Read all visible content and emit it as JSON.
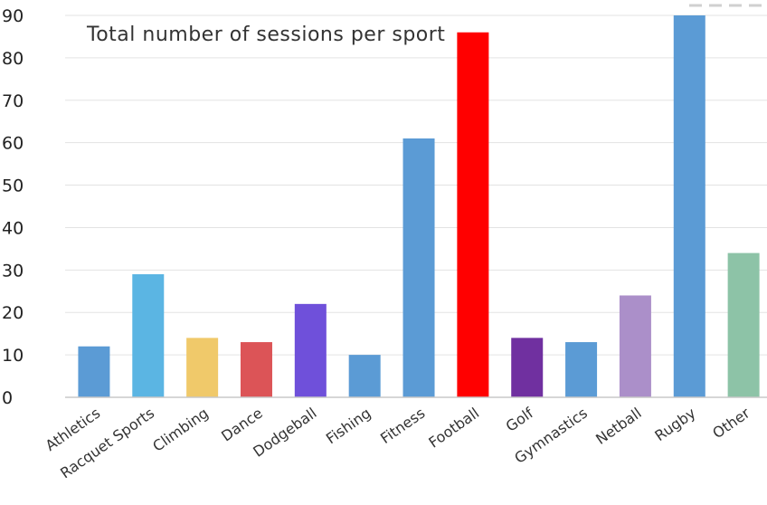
{
  "chart_data": {
    "type": "bar",
    "title": "Total number of sessions per sport",
    "xlabel": "",
    "ylabel": "",
    "ylim": [
      0,
      90
    ],
    "yticks": [
      "0",
      "10",
      "20",
      "30",
      "40",
      "50",
      "60",
      "70",
      "80",
      "90"
    ],
    "grid": true,
    "categories": [
      "Athletics",
      "Racquet Sports",
      "Climbing",
      "Dance",
      "Dodgeball",
      "Fishing",
      "Fitness",
      "Football",
      "Golf",
      "Gymnastics",
      "Netball",
      "Rugby",
      "Other"
    ],
    "values": [
      12,
      29,
      14,
      13,
      22,
      10,
      61,
      86,
      14,
      13,
      24,
      90,
      34
    ],
    "colors": [
      "#5b9bd5",
      "#5bb5e3",
      "#f0c96a",
      "#dc5457",
      "#6f50da",
      "#5b9bd5",
      "#5b9bd5",
      "#ff0000",
      "#7030a0",
      "#5b9bd5",
      "#ab8fc9",
      "#5b9bd5",
      "#8dc3a7"
    ]
  }
}
